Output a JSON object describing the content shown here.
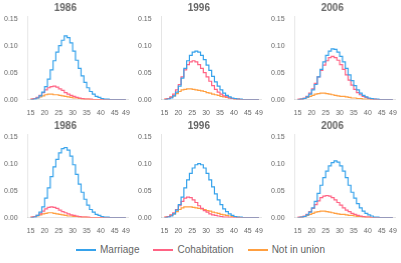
{
  "chart_data": [
    {
      "type": "line",
      "title": "1986",
      "line_style": "step",
      "grid": false,
      "legend": "bottom",
      "x": [
        15,
        16,
        17,
        18,
        19,
        20,
        21,
        22,
        23,
        24,
        25,
        26,
        27,
        28,
        29,
        30,
        31,
        32,
        33,
        34,
        35,
        36,
        37,
        38,
        39,
        40,
        41,
        42,
        43,
        44,
        45,
        46,
        47,
        48,
        49
      ],
      "series": [
        {
          "name": "Marriage",
          "values": [
            0.0,
            0.001,
            0.003,
            0.007,
            0.014,
            0.024,
            0.038,
            0.055,
            0.072,
            0.088,
            0.1,
            0.11,
            0.118,
            0.115,
            0.105,
            0.09,
            0.073,
            0.058,
            0.044,
            0.032,
            0.022,
            0.015,
            0.01,
            0.006,
            0.004,
            0.002,
            0.001,
            0.001,
            0.0,
            0.0,
            0.0,
            0.0,
            0.0,
            0.0,
            0.0
          ]
        },
        {
          "name": "Cohabitation",
          "values": [
            0.001,
            0.002,
            0.004,
            0.008,
            0.013,
            0.018,
            0.022,
            0.024,
            0.025,
            0.023,
            0.02,
            0.017,
            0.013,
            0.01,
            0.008,
            0.006,
            0.004,
            0.003,
            0.002,
            0.001,
            0.001,
            0.001,
            0.0,
            0.0,
            0.0,
            0.0,
            0.0,
            0.0,
            0.0,
            0.0,
            0.0,
            0.0,
            0.0,
            0.0,
            0.0
          ]
        },
        {
          "name": "Not in union",
          "values": [
            0.001,
            0.002,
            0.003,
            0.005,
            0.007,
            0.009,
            0.01,
            0.01,
            0.009,
            0.009,
            0.008,
            0.007,
            0.006,
            0.005,
            0.004,
            0.003,
            0.003,
            0.002,
            0.001,
            0.001,
            0.001,
            0.0,
            0.0,
            0.0,
            0.0,
            0.0,
            0.0,
            0.0,
            0.0,
            0.0,
            0.0,
            0.0,
            0.0,
            0.0,
            0.0
          ]
        }
      ],
      "xlim": [
        14,
        50
      ],
      "xticks": [
        15,
        20,
        25,
        30,
        35,
        40,
        45,
        49
      ],
      "ylim": [
        0,
        0.155
      ],
      "yticks": [
        {
          "value": 0.0,
          "label": "0.00"
        },
        {
          "value": 0.05,
          "label": "0.05"
        },
        {
          "value": 0.1,
          "label": "0.10"
        },
        {
          "value": 0.15,
          "label": "0.15"
        }
      ]
    },
    {
      "type": "line",
      "title": "1996",
      "line_style": "step",
      "grid": false,
      "legend": "bottom",
      "x": [
        15,
        16,
        17,
        18,
        19,
        20,
        21,
        22,
        23,
        24,
        25,
        26,
        27,
        28,
        29,
        30,
        31,
        32,
        33,
        34,
        35,
        36,
        37,
        38,
        39,
        40,
        41,
        42,
        43,
        44,
        45,
        46,
        47,
        48,
        49
      ],
      "series": [
        {
          "name": "Marriage",
          "values": [
            0.0,
            0.001,
            0.003,
            0.007,
            0.014,
            0.025,
            0.04,
            0.058,
            0.072,
            0.082,
            0.088,
            0.09,
            0.088,
            0.082,
            0.074,
            0.064,
            0.054,
            0.043,
            0.033,
            0.025,
            0.018,
            0.012,
            0.008,
            0.005,
            0.003,
            0.002,
            0.001,
            0.001,
            0.0,
            0.0,
            0.0,
            0.0,
            0.0,
            0.0,
            0.0
          ]
        },
        {
          "name": "Cohabitation",
          "values": [
            0.001,
            0.002,
            0.005,
            0.01,
            0.018,
            0.028,
            0.042,
            0.055,
            0.065,
            0.07,
            0.072,
            0.07,
            0.065,
            0.058,
            0.05,
            0.042,
            0.034,
            0.026,
            0.019,
            0.014,
            0.01,
            0.007,
            0.005,
            0.003,
            0.002,
            0.001,
            0.001,
            0.0,
            0.0,
            0.0,
            0.0,
            0.0,
            0.0,
            0.0,
            0.0
          ]
        },
        {
          "name": "Not in union",
          "values": [
            0.001,
            0.002,
            0.004,
            0.007,
            0.011,
            0.015,
            0.018,
            0.019,
            0.02,
            0.02,
            0.019,
            0.018,
            0.017,
            0.016,
            0.015,
            0.013,
            0.012,
            0.01,
            0.009,
            0.008,
            0.006,
            0.005,
            0.004,
            0.003,
            0.002,
            0.001,
            0.001,
            0.0,
            0.0,
            0.0,
            0.0,
            0.0,
            0.0,
            0.0,
            0.0
          ]
        }
      ],
      "xlim": [
        14,
        50
      ],
      "xticks": [
        15,
        20,
        25,
        30,
        35,
        40,
        45,
        49
      ],
      "ylim": [
        0,
        0.155
      ],
      "yticks": [
        {
          "value": 0.0,
          "label": "0.00"
        },
        {
          "value": 0.05,
          "label": "0.05"
        },
        {
          "value": 0.1,
          "label": "0.10"
        },
        {
          "value": 0.15,
          "label": "0.15"
        }
      ]
    },
    {
      "type": "line",
      "title": "2006",
      "line_style": "step",
      "grid": false,
      "legend": "bottom",
      "x": [
        15,
        16,
        17,
        18,
        19,
        20,
        21,
        22,
        23,
        24,
        25,
        26,
        27,
        28,
        29,
        30,
        31,
        32,
        33,
        34,
        35,
        36,
        37,
        38,
        39,
        40,
        41,
        42,
        43,
        44,
        45,
        46,
        47,
        48,
        49
      ],
      "series": [
        {
          "name": "Marriage",
          "values": [
            0.0,
            0.001,
            0.002,
            0.005,
            0.01,
            0.018,
            0.028,
            0.042,
            0.056,
            0.07,
            0.082,
            0.09,
            0.094,
            0.093,
            0.088,
            0.08,
            0.07,
            0.058,
            0.046,
            0.035,
            0.026,
            0.018,
            0.012,
            0.008,
            0.005,
            0.003,
            0.002,
            0.001,
            0.001,
            0.0,
            0.0,
            0.0,
            0.0,
            0.0,
            0.0
          ]
        },
        {
          "name": "Cohabitation",
          "values": [
            0.001,
            0.001,
            0.003,
            0.006,
            0.012,
            0.02,
            0.03,
            0.042,
            0.054,
            0.064,
            0.072,
            0.078,
            0.08,
            0.078,
            0.073,
            0.065,
            0.056,
            0.046,
            0.036,
            0.027,
            0.019,
            0.013,
            0.009,
            0.006,
            0.004,
            0.002,
            0.001,
            0.001,
            0.0,
            0.0,
            0.0,
            0.0,
            0.0,
            0.0,
            0.0
          ]
        },
        {
          "name": "Not in union",
          "values": [
            0.0,
            0.001,
            0.002,
            0.004,
            0.006,
            0.008,
            0.01,
            0.011,
            0.012,
            0.012,
            0.011,
            0.01,
            0.009,
            0.008,
            0.007,
            0.006,
            0.006,
            0.005,
            0.004,
            0.003,
            0.003,
            0.002,
            0.002,
            0.001,
            0.001,
            0.001,
            0.0,
            0.0,
            0.0,
            0.0,
            0.0,
            0.0,
            0.0,
            0.0,
            0.0
          ]
        }
      ],
      "xlim": [
        14,
        50
      ],
      "xticks": [
        15,
        20,
        25,
        30,
        35,
        40,
        45,
        49
      ],
      "ylim": [
        0,
        0.155
      ],
      "yticks": [
        {
          "value": 0.0,
          "label": "0.00"
        },
        {
          "value": 0.05,
          "label": "0.05"
        },
        {
          "value": 0.1,
          "label": "0.10"
        },
        {
          "value": 0.15,
          "label": "0.15"
        }
      ]
    },
    {
      "type": "line",
      "title": "1986",
      "line_style": "step",
      "grid": false,
      "legend": "bottom",
      "x": [
        15,
        16,
        17,
        18,
        19,
        20,
        21,
        22,
        23,
        24,
        25,
        26,
        27,
        28,
        29,
        30,
        31,
        32,
        33,
        34,
        35,
        36,
        37,
        38,
        39,
        40,
        41,
        42,
        43,
        44,
        45,
        46,
        47,
        48,
        49
      ],
      "series": [
        {
          "name": "Marriage",
          "values": [
            0.0,
            0.001,
            0.004,
            0.01,
            0.02,
            0.036,
            0.055,
            0.076,
            0.094,
            0.108,
            0.12,
            0.128,
            0.13,
            0.125,
            0.114,
            0.098,
            0.08,
            0.062,
            0.047,
            0.034,
            0.023,
            0.015,
            0.01,
            0.006,
            0.004,
            0.002,
            0.001,
            0.001,
            0.0,
            0.0,
            0.0,
            0.0,
            0.0,
            0.0,
            0.0
          ]
        },
        {
          "name": "Cohabitation",
          "values": [
            0.001,
            0.002,
            0.004,
            0.007,
            0.012,
            0.016,
            0.019,
            0.02,
            0.019,
            0.017,
            0.014,
            0.011,
            0.009,
            0.007,
            0.005,
            0.004,
            0.003,
            0.002,
            0.001,
            0.001,
            0.001,
            0.0,
            0.0,
            0.0,
            0.0,
            0.0,
            0.0,
            0.0,
            0.0,
            0.0,
            0.0,
            0.0,
            0.0,
            0.0,
            0.0
          ]
        },
        {
          "name": "Not in union",
          "values": [
            0.001,
            0.002,
            0.003,
            0.005,
            0.007,
            0.008,
            0.009,
            0.009,
            0.008,
            0.007,
            0.006,
            0.005,
            0.004,
            0.003,
            0.003,
            0.002,
            0.002,
            0.001,
            0.001,
            0.001,
            0.0,
            0.0,
            0.0,
            0.0,
            0.0,
            0.0,
            0.0,
            0.0,
            0.0,
            0.0,
            0.0,
            0.0,
            0.0,
            0.0,
            0.0
          ]
        }
      ],
      "xlim": [
        14,
        50
      ],
      "xticks": [
        15,
        20,
        25,
        30,
        35,
        40,
        45,
        49
      ],
      "ylim": [
        0,
        0.155
      ],
      "yticks": [
        {
          "value": 0.0,
          "label": "0.00"
        },
        {
          "value": 0.05,
          "label": "0.05"
        },
        {
          "value": 0.1,
          "label": "0.10"
        },
        {
          "value": 0.15,
          "label": "0.15"
        }
      ]
    },
    {
      "type": "line",
      "title": "1996",
      "line_style": "step",
      "grid": false,
      "legend": "bottom",
      "x": [
        15,
        16,
        17,
        18,
        19,
        20,
        21,
        22,
        23,
        24,
        25,
        26,
        27,
        28,
        29,
        30,
        31,
        32,
        33,
        34,
        35,
        36,
        37,
        38,
        39,
        40,
        41,
        42,
        43,
        44,
        45,
        46,
        47,
        48,
        49
      ],
      "series": [
        {
          "name": "Marriage",
          "values": [
            0.0,
            0.001,
            0.003,
            0.007,
            0.014,
            0.024,
            0.038,
            0.055,
            0.07,
            0.082,
            0.092,
            0.098,
            0.1,
            0.098,
            0.092,
            0.082,
            0.07,
            0.057,
            0.044,
            0.033,
            0.024,
            0.016,
            0.011,
            0.007,
            0.004,
            0.002,
            0.001,
            0.001,
            0.0,
            0.0,
            0.0,
            0.0,
            0.0,
            0.0,
            0.0
          ]
        },
        {
          "name": "Cohabitation",
          "values": [
            0.001,
            0.002,
            0.005,
            0.009,
            0.015,
            0.022,
            0.03,
            0.036,
            0.038,
            0.037,
            0.033,
            0.028,
            0.022,
            0.017,
            0.013,
            0.01,
            0.007,
            0.005,
            0.004,
            0.003,
            0.002,
            0.001,
            0.001,
            0.0,
            0.0,
            0.0,
            0.0,
            0.0,
            0.0,
            0.0,
            0.0,
            0.0,
            0.0,
            0.0,
            0.0
          ]
        },
        {
          "name": "Not in union",
          "values": [
            0.001,
            0.002,
            0.004,
            0.007,
            0.011,
            0.015,
            0.018,
            0.02,
            0.02,
            0.02,
            0.019,
            0.018,
            0.017,
            0.016,
            0.015,
            0.013,
            0.012,
            0.01,
            0.009,
            0.008,
            0.006,
            0.005,
            0.004,
            0.003,
            0.002,
            0.001,
            0.001,
            0.0,
            0.0,
            0.0,
            0.0,
            0.0,
            0.0,
            0.0,
            0.0
          ]
        }
      ],
      "xlim": [
        14,
        50
      ],
      "xticks": [
        15,
        20,
        25,
        30,
        35,
        40,
        45,
        49
      ],
      "ylim": [
        0,
        0.155
      ],
      "yticks": [
        {
          "value": 0.0,
          "label": "0.00"
        },
        {
          "value": 0.05,
          "label": "0.05"
        },
        {
          "value": 0.1,
          "label": "0.10"
        },
        {
          "value": 0.15,
          "label": "0.15"
        }
      ]
    },
    {
      "type": "line",
      "title": "2006",
      "line_style": "step",
      "grid": false,
      "legend": "bottom",
      "x": [
        15,
        16,
        17,
        18,
        19,
        20,
        21,
        22,
        23,
        24,
        25,
        26,
        27,
        28,
        29,
        30,
        31,
        32,
        33,
        34,
        35,
        36,
        37,
        38,
        39,
        40,
        41,
        42,
        43,
        44,
        45,
        46,
        47,
        48,
        49
      ],
      "series": [
        {
          "name": "Marriage",
          "values": [
            0.0,
            0.001,
            0.002,
            0.005,
            0.01,
            0.018,
            0.03,
            0.045,
            0.06,
            0.074,
            0.086,
            0.096,
            0.102,
            0.105,
            0.103,
            0.096,
            0.086,
            0.074,
            0.06,
            0.047,
            0.036,
            0.026,
            0.018,
            0.012,
            0.008,
            0.005,
            0.003,
            0.001,
            0.001,
            0.0,
            0.0,
            0.0,
            0.0,
            0.0,
            0.0
          ]
        },
        {
          "name": "Cohabitation",
          "values": [
            0.001,
            0.001,
            0.003,
            0.006,
            0.011,
            0.017,
            0.024,
            0.031,
            0.037,
            0.04,
            0.041,
            0.04,
            0.037,
            0.033,
            0.028,
            0.023,
            0.018,
            0.014,
            0.011,
            0.008,
            0.006,
            0.004,
            0.003,
            0.002,
            0.001,
            0.001,
            0.0,
            0.0,
            0.0,
            0.0,
            0.0,
            0.0,
            0.0,
            0.0,
            0.0
          ]
        },
        {
          "name": "Not in union",
          "values": [
            0.0,
            0.001,
            0.002,
            0.004,
            0.006,
            0.008,
            0.01,
            0.011,
            0.012,
            0.012,
            0.011,
            0.01,
            0.009,
            0.008,
            0.007,
            0.006,
            0.006,
            0.005,
            0.004,
            0.004,
            0.003,
            0.002,
            0.002,
            0.001,
            0.001,
            0.001,
            0.0,
            0.0,
            0.0,
            0.0,
            0.0,
            0.0,
            0.0,
            0.0,
            0.0
          ]
        }
      ],
      "xlim": [
        14,
        50
      ],
      "xticks": [
        15,
        20,
        25,
        30,
        35,
        40,
        45,
        49
      ],
      "ylim": [
        0,
        0.155
      ],
      "yticks": [
        {
          "value": 0.0,
          "label": "0.00"
        },
        {
          "value": 0.05,
          "label": "0.05"
        },
        {
          "value": 0.1,
          "label": "0.10"
        },
        {
          "value": 0.15,
          "label": "0.15"
        }
      ]
    }
  ]
}
